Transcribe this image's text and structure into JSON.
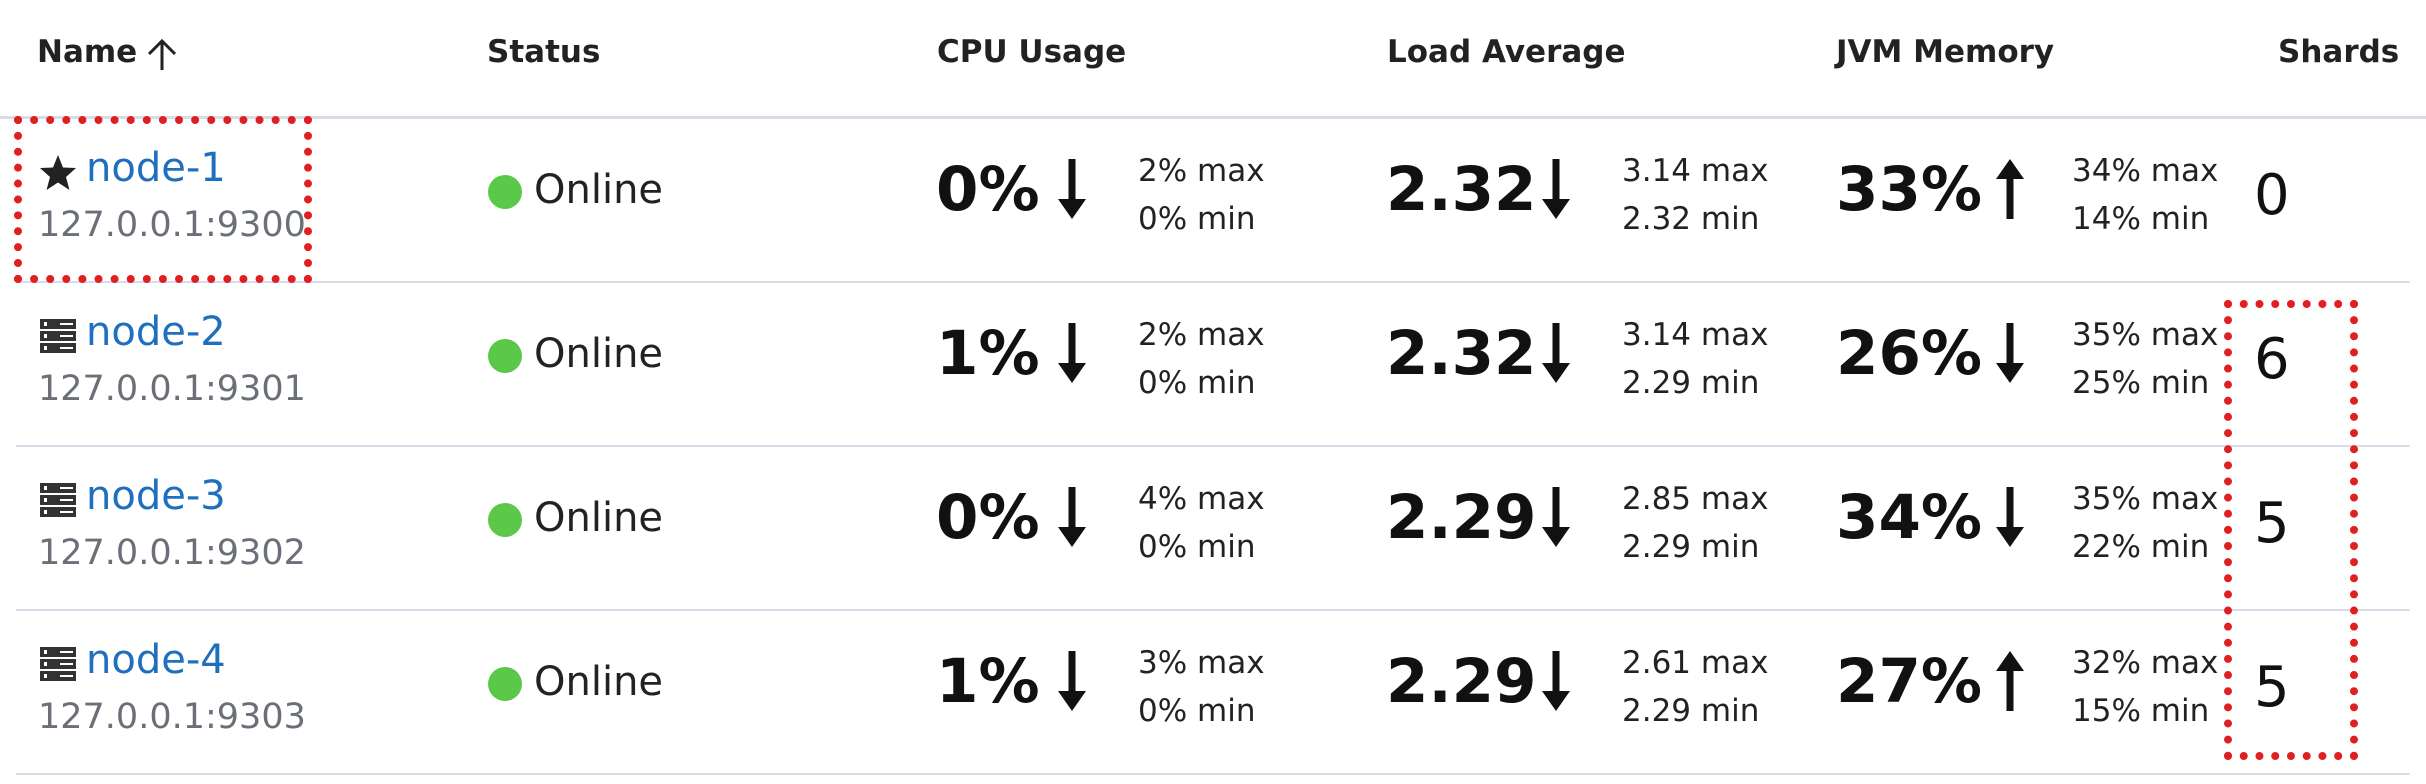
{
  "header": {
    "name": "Name",
    "status": "Status",
    "cpu": "CPU Usage",
    "load": "Load Average",
    "jvm": "JVM Memory",
    "shards": "Shards",
    "sort_icon": "arrow-up-icon"
  },
  "rows": [
    {
      "icon": "star-icon",
      "name": "node-1",
      "address": "127.0.0.1:9300",
      "status": "Online",
      "cpu": {
        "value": "0%",
        "trend": "down",
        "max": "2% max",
        "min": "0% min"
      },
      "load": {
        "value": "2.32",
        "trend": "down",
        "max": "3.14 max",
        "min": "2.32 min"
      },
      "jvm": {
        "value": "33%",
        "trend": "up",
        "max": "34% max",
        "min": "14% min"
      },
      "shards": "0"
    },
    {
      "icon": "server-icon",
      "name": "node-2",
      "address": "127.0.0.1:9301",
      "status": "Online",
      "cpu": {
        "value": "1%",
        "trend": "down",
        "max": "2% max",
        "min": "0% min"
      },
      "load": {
        "value": "2.32",
        "trend": "down",
        "max": "3.14 max",
        "min": "2.29 min"
      },
      "jvm": {
        "value": "26%",
        "trend": "down",
        "max": "35% max",
        "min": "25% min"
      },
      "shards": "6"
    },
    {
      "icon": "server-icon",
      "name": "node-3",
      "address": "127.0.0.1:9302",
      "status": "Online",
      "cpu": {
        "value": "0%",
        "trend": "down",
        "max": "4% max",
        "min": "0% min"
      },
      "load": {
        "value": "2.29",
        "trend": "down",
        "max": "2.85 max",
        "min": "2.29 min"
      },
      "jvm": {
        "value": "34%",
        "trend": "down",
        "max": "35% max",
        "min": "22% min"
      },
      "shards": "5"
    },
    {
      "icon": "server-icon",
      "name": "node-4",
      "address": "127.0.0.1:9303",
      "status": "Online",
      "cpu": {
        "value": "1%",
        "trend": "down",
        "max": "3% max",
        "min": "0% min"
      },
      "load": {
        "value": "2.29",
        "trend": "down",
        "max": "2.61 max",
        "min": "2.29 min"
      },
      "jvm": {
        "value": "27%",
        "trend": "up",
        "max": "32% max",
        "min": "15% min"
      },
      "shards": "5"
    }
  ],
  "colors": {
    "link": "#1f6fbf",
    "online": "#5cc84a",
    "highlight": "#e02020",
    "divider": "#d8dce6"
  }
}
